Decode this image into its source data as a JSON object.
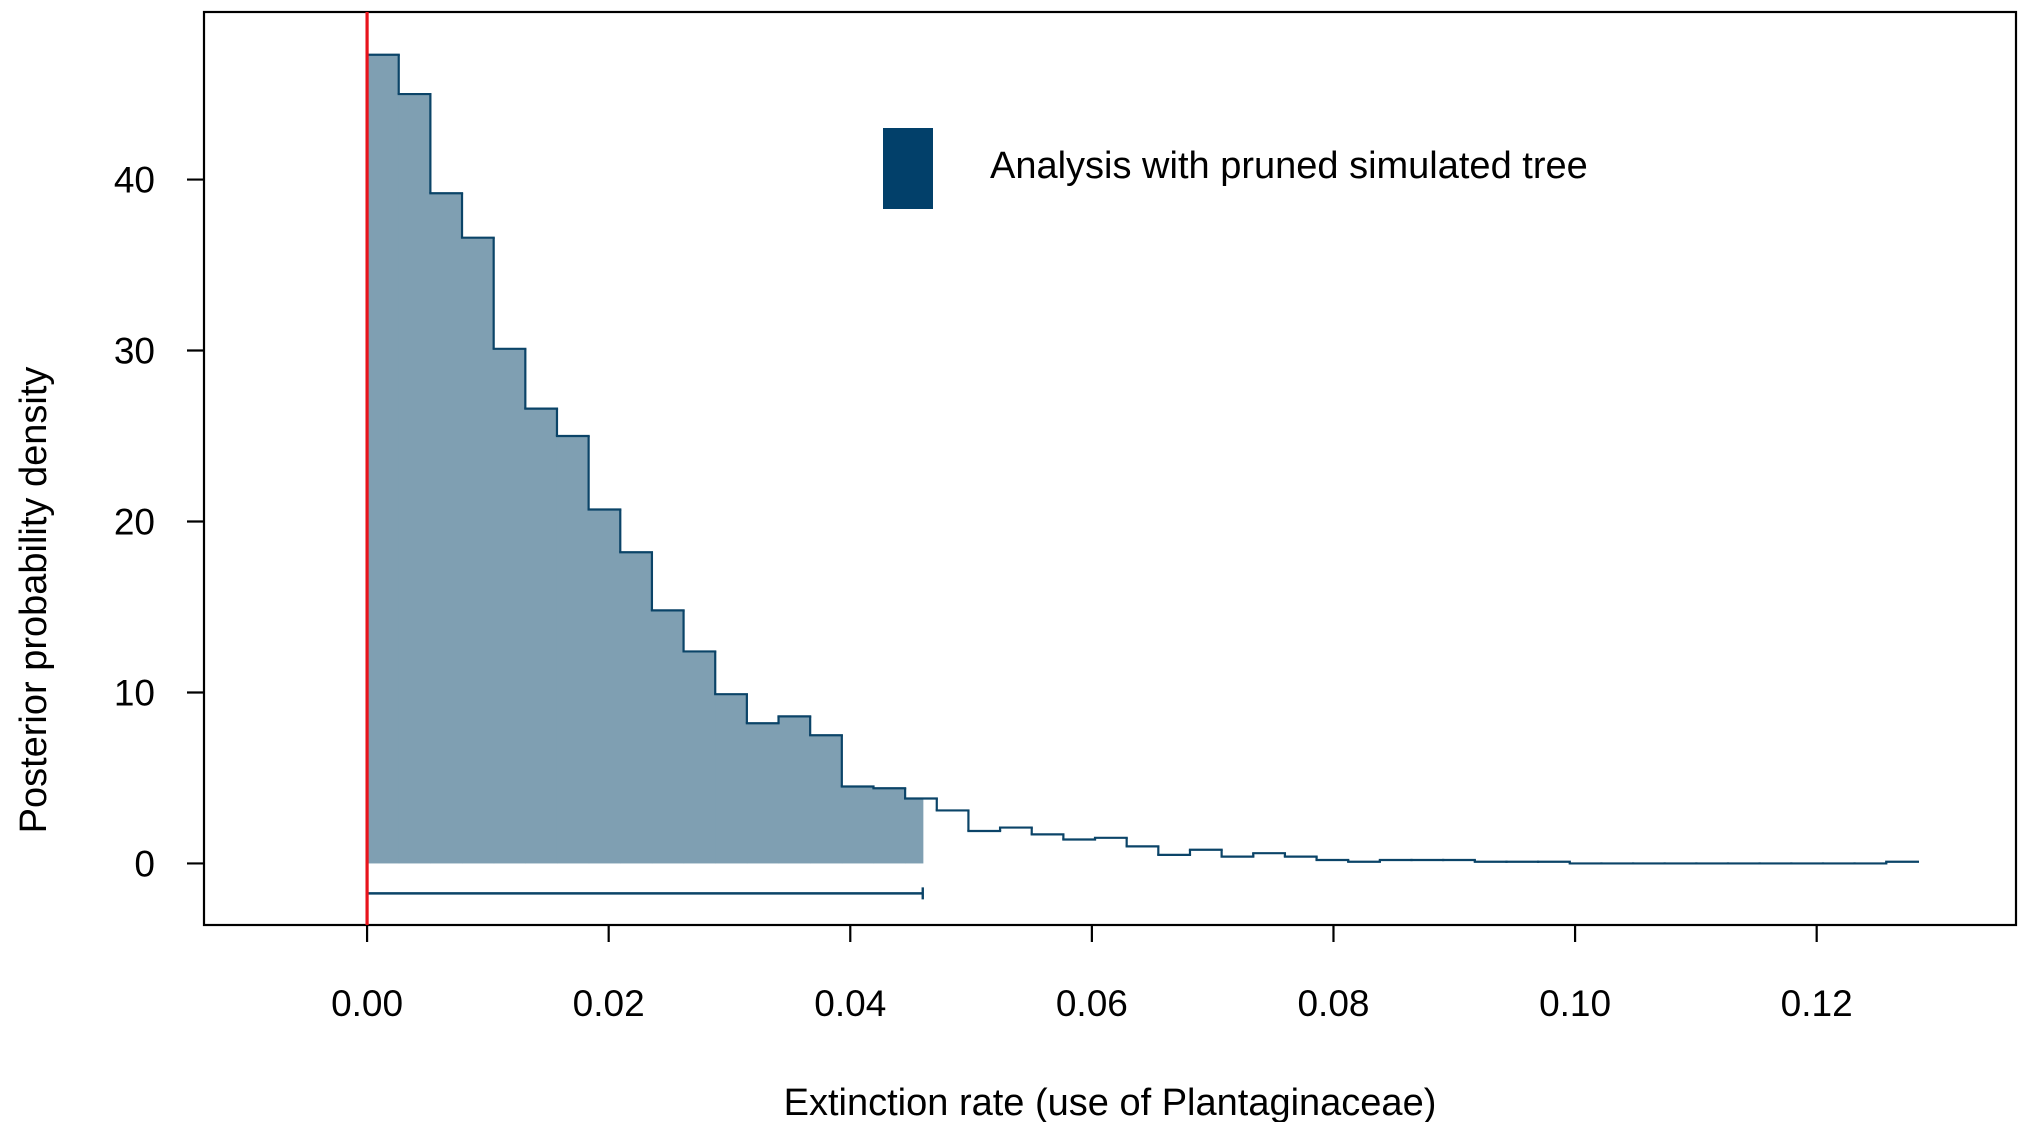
{
  "chart_data": {
    "type": "histogram",
    "xlabel": "Extinction rate (use of Plantaginaceae)",
    "ylabel": "Posterior probability density",
    "xlim": [
      -0.0135,
      0.1365
    ],
    "ylim": [
      -3.6,
      49.8
    ],
    "xticks": [
      0.0,
      0.02,
      0.04,
      0.06,
      0.08,
      0.1,
      0.12
    ],
    "xtick_labels": [
      "0.00",
      "0.02",
      "0.04",
      "0.06",
      "0.08",
      "0.10",
      "0.12"
    ],
    "yticks": [
      0,
      10,
      20,
      30,
      40
    ],
    "ytick_labels": [
      "0",
      "10",
      "20",
      "30",
      "40"
    ],
    "bin_start": 0.0,
    "bin_width": 0.00262,
    "densities": [
      47.3,
      45.0,
      39.2,
      36.6,
      30.1,
      26.6,
      25.0,
      20.7,
      18.2,
      14.8,
      12.4,
      9.9,
      8.2,
      8.6,
      7.5,
      4.5,
      4.4,
      3.8,
      3.1,
      1.9,
      2.1,
      1.7,
      1.4,
      1.5,
      1.0,
      0.5,
      0.8,
      0.4,
      0.6,
      0.4,
      0.2,
      0.1,
      0.2,
      0.2,
      0.2,
      0.1,
      0.1,
      0.1,
      0.0,
      0.0,
      0.0,
      0.0,
      0.0,
      0.0,
      0.0,
      0.0,
      0.0,
      0.0,
      0.1
    ],
    "hpd_interval": [
      0.0,
      0.046
    ],
    "reference_line_x": 0.0,
    "legend": {
      "label": "Analysis with pruned simulated tree",
      "placement": "top-center"
    },
    "colors": {
      "outline": "#0b4468",
      "fill": "#7f9fb2",
      "legend_swatch": "#02406a",
      "reference_line": "#e8141c",
      "axes": "#000000"
    }
  }
}
